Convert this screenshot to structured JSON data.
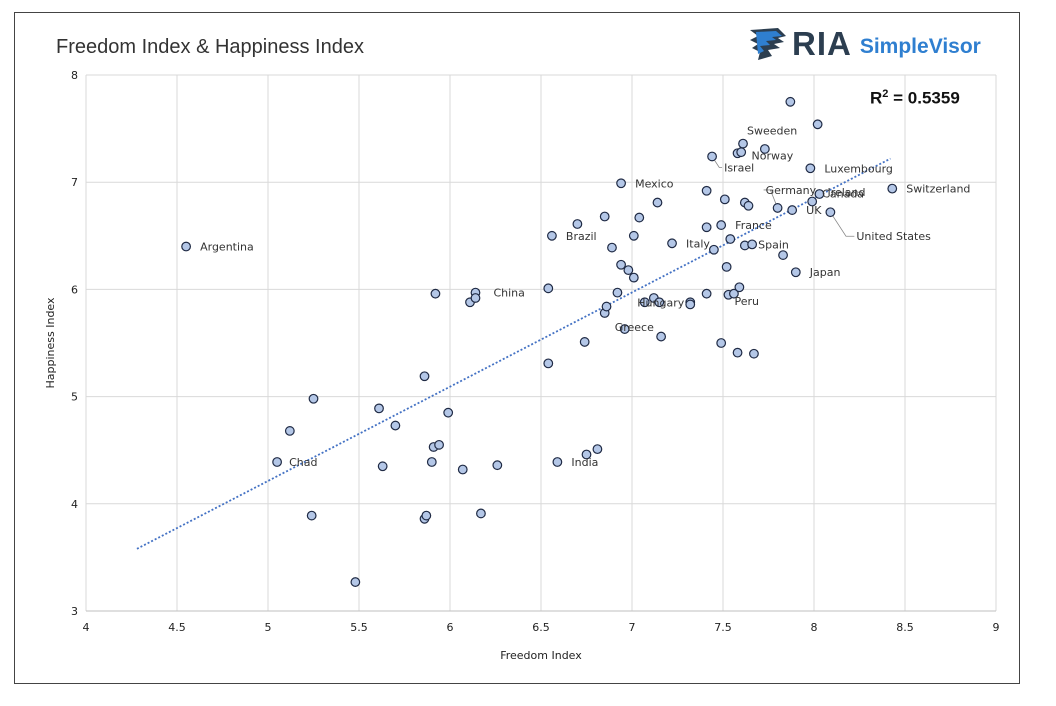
{
  "title": "Freedom Index & Happiness Index",
  "logo": {
    "brand": "RIA",
    "product": "SimpleVisor",
    "icon": "eagle-head-icon"
  },
  "r2": {
    "prefix": "R",
    "sup": "2",
    "rest": " = 0.5359"
  },
  "chart_data": {
    "type": "scatter",
    "title": "Freedom Index & Happiness Index",
    "xlabel": "Freedom Index",
    "ylabel": "Happiness Index",
    "xlim": [
      4,
      9
    ],
    "ylim": [
      3,
      8
    ],
    "xticks": [
      4,
      4.5,
      5,
      5.5,
      6,
      6.5,
      7,
      7.5,
      8,
      8.5,
      9
    ],
    "xtick_labels": [
      "4",
      "4.5",
      "5",
      "5.5",
      "6",
      "6.5",
      "7",
      "7.5",
      "8",
      "8.5",
      "9"
    ],
    "yticks": [
      3,
      4,
      5,
      6,
      7,
      8
    ],
    "ytick_labels": [
      "3",
      "4",
      "5",
      "6",
      "7",
      "8"
    ],
    "grid": "vertical and horizontal",
    "trendline": {
      "style": "dotted",
      "color": "#4472c4",
      "x": [
        4.28,
        8.42
      ],
      "y": [
        3.58,
        7.22
      ]
    },
    "r_squared": 0.5359,
    "marker_fill": "#b4c7e7",
    "marker_edge": "#1f2a44",
    "points": [
      {
        "x": 4.55,
        "y": 6.4,
        "label": "Argentina"
      },
      {
        "x": 5.05,
        "y": 4.39,
        "label": "Chad"
      },
      {
        "x": 5.12,
        "y": 4.68,
        "label": ""
      },
      {
        "x": 5.24,
        "y": 3.89,
        "label": ""
      },
      {
        "x": 5.25,
        "y": 4.98,
        "label": ""
      },
      {
        "x": 5.48,
        "y": 3.27,
        "label": ""
      },
      {
        "x": 5.61,
        "y": 4.89,
        "label": ""
      },
      {
        "x": 5.63,
        "y": 4.35,
        "label": ""
      },
      {
        "x": 5.7,
        "y": 4.73,
        "label": ""
      },
      {
        "x": 5.86,
        "y": 5.19,
        "label": ""
      },
      {
        "x": 5.86,
        "y": 3.86,
        "label": ""
      },
      {
        "x": 5.87,
        "y": 3.89,
        "label": ""
      },
      {
        "x": 5.9,
        "y": 4.39,
        "label": ""
      },
      {
        "x": 5.91,
        "y": 4.53,
        "label": ""
      },
      {
        "x": 5.92,
        "y": 5.96,
        "label": ""
      },
      {
        "x": 5.94,
        "y": 4.55,
        "label": ""
      },
      {
        "x": 5.99,
        "y": 4.85,
        "label": ""
      },
      {
        "x": 6.07,
        "y": 4.32,
        "label": ""
      },
      {
        "x": 6.11,
        "y": 5.88,
        "label": ""
      },
      {
        "x": 6.14,
        "y": 5.97,
        "label": "China"
      },
      {
        "x": 6.14,
        "y": 5.92,
        "label": ""
      },
      {
        "x": 6.17,
        "y": 3.91,
        "label": ""
      },
      {
        "x": 6.26,
        "y": 4.36,
        "label": ""
      },
      {
        "x": 6.54,
        "y": 6.01,
        "label": ""
      },
      {
        "x": 6.54,
        "y": 5.31,
        "label": ""
      },
      {
        "x": 6.56,
        "y": 6.5,
        "label": "Brazil"
      },
      {
        "x": 6.59,
        "y": 4.39,
        "label": "India"
      },
      {
        "x": 6.7,
        "y": 6.61,
        "label": ""
      },
      {
        "x": 6.74,
        "y": 5.51,
        "label": ""
      },
      {
        "x": 6.75,
        "y": 4.46,
        "label": ""
      },
      {
        "x": 6.81,
        "y": 4.51,
        "label": ""
      },
      {
        "x": 6.85,
        "y": 6.68,
        "label": ""
      },
      {
        "x": 6.85,
        "y": 5.78,
        "label": "Greece"
      },
      {
        "x": 6.86,
        "y": 5.84,
        "label": ""
      },
      {
        "x": 6.89,
        "y": 6.39,
        "label": ""
      },
      {
        "x": 6.92,
        "y": 5.97,
        "label": ""
      },
      {
        "x": 6.94,
        "y": 6.99,
        "label": "Mexico"
      },
      {
        "x": 6.94,
        "y": 6.23,
        "label": ""
      },
      {
        "x": 6.96,
        "y": 5.63,
        "label": ""
      },
      {
        "x": 6.98,
        "y": 6.18,
        "label": ""
      },
      {
        "x": 7.01,
        "y": 6.5,
        "label": ""
      },
      {
        "x": 7.01,
        "y": 6.11,
        "label": ""
      },
      {
        "x": 7.04,
        "y": 6.67,
        "label": ""
      },
      {
        "x": 7.07,
        "y": 5.88,
        "label": ""
      },
      {
        "x": 7.12,
        "y": 5.92,
        "label": ""
      },
      {
        "x": 7.14,
        "y": 6.81,
        "label": ""
      },
      {
        "x": 7.15,
        "y": 5.88,
        "label": ""
      },
      {
        "x": 7.16,
        "y": 5.56,
        "label": ""
      },
      {
        "x": 7.22,
        "y": 6.43,
        "label": "Italy"
      },
      {
        "x": 7.32,
        "y": 5.88,
        "label": "Hungary"
      },
      {
        "x": 7.32,
        "y": 5.86,
        "label": ""
      },
      {
        "x": 7.41,
        "y": 6.92,
        "label": ""
      },
      {
        "x": 7.41,
        "y": 6.58,
        "label": ""
      },
      {
        "x": 7.41,
        "y": 5.96,
        "label": ""
      },
      {
        "x": 7.44,
        "y": 7.24,
        "label": "Israel"
      },
      {
        "x": 7.45,
        "y": 6.37,
        "label": ""
      },
      {
        "x": 7.49,
        "y": 6.6,
        "label": "France"
      },
      {
        "x": 7.49,
        "y": 5.5,
        "label": ""
      },
      {
        "x": 7.51,
        "y": 6.84,
        "label": ""
      },
      {
        "x": 7.52,
        "y": 6.21,
        "label": ""
      },
      {
        "x": 7.53,
        "y": 5.95,
        "label": "Peru"
      },
      {
        "x": 7.54,
        "y": 6.47,
        "label": ""
      },
      {
        "x": 7.56,
        "y": 5.96,
        "label": ""
      },
      {
        "x": 7.58,
        "y": 7.27,
        "label": "Norway"
      },
      {
        "x": 7.58,
        "y": 5.41,
        "label": ""
      },
      {
        "x": 7.59,
        "y": 6.02,
        "label": ""
      },
      {
        "x": 7.6,
        "y": 7.28,
        "label": ""
      },
      {
        "x": 7.61,
        "y": 7.36,
        "label": "Sweeden"
      },
      {
        "x": 7.62,
        "y": 6.81,
        "label": ""
      },
      {
        "x": 7.62,
        "y": 6.41,
        "label": ""
      },
      {
        "x": 7.64,
        "y": 6.78,
        "label": ""
      },
      {
        "x": 7.66,
        "y": 6.42,
        "label": "Spain"
      },
      {
        "x": 7.67,
        "y": 5.4,
        "label": ""
      },
      {
        "x": 7.73,
        "y": 7.31,
        "label": ""
      },
      {
        "x": 7.8,
        "y": 6.76,
        "label": "Germany"
      },
      {
        "x": 7.83,
        "y": 6.32,
        "label": ""
      },
      {
        "x": 7.87,
        "y": 7.75,
        "label": ""
      },
      {
        "x": 7.88,
        "y": 6.74,
        "label": "UK"
      },
      {
        "x": 7.9,
        "y": 6.16,
        "label": "Japan"
      },
      {
        "x": 7.98,
        "y": 7.13,
        "label": "Luxembourg"
      },
      {
        "x": 7.99,
        "y": 6.82,
        "label": "Canada"
      },
      {
        "x": 8.02,
        "y": 7.54,
        "label": ""
      },
      {
        "x": 8.03,
        "y": 6.89,
        "label": "Ireland"
      },
      {
        "x": 8.09,
        "y": 6.72,
        "label": "United States"
      },
      {
        "x": 8.43,
        "y": 6.94,
        "label": "Switzerland"
      }
    ]
  }
}
